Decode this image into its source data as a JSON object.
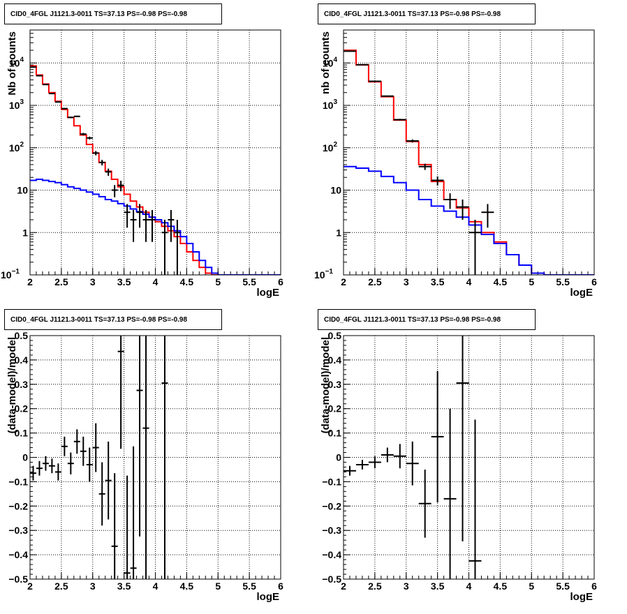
{
  "chart_data": [
    {
      "type": "line",
      "title": "CID0_4FGL J1121.3-0011 TS=37.13 PS=-0.98 PS=-0.98",
      "xlabel": "logE",
      "ylabel": "Nb of counts",
      "xlim": [
        2,
        6
      ],
      "ylim": [
        0.1,
        60000
      ],
      "yscale": "log",
      "grid": true,
      "xticks": [
        "2",
        "2.5",
        "3",
        "3.5",
        "4",
        "4.5",
        "5",
        "5.5",
        "6"
      ],
      "yticks": [
        {
          "v": 0.1,
          "label": "10",
          "sup": "−1"
        },
        {
          "v": 1,
          "label": "1",
          "sup": ""
        },
        {
          "v": 10,
          "label": "10",
          "sup": ""
        },
        {
          "v": 100,
          "label": "10",
          "sup": "2"
        },
        {
          "v": 1000,
          "label": "10",
          "sup": "3"
        },
        {
          "v": 10000,
          "label": "10",
          "sup": "4"
        }
      ],
      "bin_edges": [
        2.0,
        2.1,
        2.2,
        2.3,
        2.4,
        2.5,
        2.6,
        2.7,
        2.8,
        2.9,
        3.0,
        3.1,
        3.2,
        3.3,
        3.4,
        3.5,
        3.6,
        3.7,
        3.8,
        3.9,
        4.0,
        4.1,
        4.2,
        4.3,
        4.4,
        4.5,
        4.6,
        4.7,
        4.8,
        4.9,
        5.0,
        5.1,
        5.2,
        5.3,
        5.4,
        5.5,
        5.6,
        5.7,
        5.8,
        5.9,
        6.0
      ],
      "series": [
        {
          "kind": "step",
          "color": "#ff0000",
          "values": [
            8500,
            5200,
            3200,
            2000,
            1250,
            800,
            520,
            330,
            200,
            120,
            75,
            45,
            28,
            18,
            12,
            8,
            5.5,
            4,
            3,
            2.3,
            1.8,
            1.4,
            1.1,
            0.8,
            0.55,
            0.35,
            0.22,
            0.15,
            0.11,
            0.1,
            0.1,
            0.1,
            0.1,
            0.1,
            0.1,
            0.1,
            0.1,
            0.1,
            0.1,
            0.1
          ]
        },
        {
          "kind": "step",
          "color": "#0000ff",
          "values": [
            17,
            18,
            17,
            16,
            15,
            13.5,
            12,
            11,
            10,
            9,
            8,
            7,
            6,
            5.5,
            4.8,
            4.2,
            3.6,
            3.1,
            2.7,
            2.3,
            2,
            1.7,
            1.4,
            1.1,
            0.8,
            0.55,
            0.35,
            0.22,
            0.15,
            0.11,
            0.1,
            0.1,
            0.1,
            0.1,
            0.1,
            0.1,
            0.1,
            0.1,
            0.1,
            0.1
          ]
        },
        {
          "kind": "points",
          "color": "#000000",
          "x": [
            2.05,
            2.15,
            2.25,
            2.35,
            2.45,
            2.55,
            2.65,
            2.75,
            2.85,
            2.95,
            3.05,
            3.15,
            3.25,
            3.35,
            3.45,
            3.55,
            3.65,
            3.75,
            3.85,
            3.95,
            4.15,
            4.25,
            4.35
          ],
          "y": [
            8000,
            5000,
            3100,
            1900,
            1200,
            840,
            520,
            550,
            210,
            170,
            75,
            45,
            27,
            10,
            13,
            3,
            2,
            3,
            2,
            2,
            1,
            2,
            1
          ],
          "yerr_lo": [
            90,
            70,
            55,
            44,
            35,
            29,
            23,
            23,
            14,
            13,
            8.7,
            6.7,
            5.2,
            3.2,
            3.6,
            1.7,
            1.4,
            1.7,
            1.4,
            1.4,
            1,
            1.4,
            1
          ],
          "yerr_hi": [
            90,
            70,
            55,
            44,
            35,
            29,
            23,
            23,
            14,
            13,
            8.7,
            6.7,
            5.2,
            3.2,
            3.6,
            1.7,
            1.4,
            1.7,
            1.4,
            1.4,
            1,
            1.4,
            1
          ]
        }
      ]
    },
    {
      "type": "line",
      "title": "CID0_4FGL J1121.3-0011 TS=37.13 PS=-0.98 PS=-0.98",
      "xlabel": "logE",
      "ylabel": "nb of counts",
      "xlim": [
        2,
        6
      ],
      "ylim": [
        0.1,
        60000
      ],
      "yscale": "log",
      "grid": true,
      "xticks": [
        "2",
        "2.5",
        "3",
        "3.5",
        "4",
        "4.5",
        "5",
        "5.5",
        "6"
      ],
      "yticks": [
        {
          "v": 0.1,
          "label": "10",
          "sup": "−1"
        },
        {
          "v": 1,
          "label": "1",
          "sup": ""
        },
        {
          "v": 10,
          "label": "10",
          "sup": ""
        },
        {
          "v": 100,
          "label": "10",
          "sup": "2"
        },
        {
          "v": 1000,
          "label": "10",
          "sup": "3"
        },
        {
          "v": 10000,
          "label": "10",
          "sup": "4"
        }
      ],
      "bin_edges": [
        2.0,
        2.2,
        2.4,
        2.6,
        2.8,
        3.0,
        3.2,
        3.4,
        3.6,
        3.8,
        4.0,
        4.2,
        4.4,
        4.6,
        4.8,
        5.0,
        5.2,
        5.4,
        5.6,
        5.8,
        6.0
      ],
      "series": [
        {
          "kind": "step",
          "color": "#ff0000",
          "values": [
            20000,
            9000,
            3600,
            1600,
            450,
            140,
            40,
            16,
            6,
            3.8,
            1.8,
            1,
            0.6,
            0.3,
            0.17,
            0.11,
            0.1,
            0.1,
            0.1,
            0.1
          ]
        },
        {
          "kind": "step",
          "color": "#0000ff",
          "values": [
            36,
            33,
            28,
            21,
            15,
            10,
            6,
            4.2,
            3.2,
            2.3,
            1.5,
            0.9,
            0.55,
            0.3,
            0.17,
            0.11,
            0.1,
            0.1,
            0.1,
            0.1
          ]
        },
        {
          "kind": "points",
          "color": "#000000",
          "x": [
            2.1,
            2.3,
            2.5,
            2.7,
            2.9,
            3.1,
            3.3,
            3.5,
            3.7,
            3.9,
            4.1,
            4.3
          ],
          "y": [
            19000,
            9100,
            3700,
            1650,
            460,
            145,
            36,
            17,
            6,
            4,
            1,
            3
          ],
          "yerr_lo": [
            140,
            95,
            61,
            41,
            21,
            12,
            6,
            4.1,
            2.4,
            2,
            1,
            1.7
          ],
          "yerr_hi": [
            140,
            95,
            61,
            41,
            21,
            12,
            6,
            4.1,
            2.4,
            2,
            1,
            1.7
          ]
        }
      ]
    },
    {
      "type": "scatter",
      "title": "CID0_4FGL J1121.3-0011 TS=37.13 PS=-0.98 PS=-0.98",
      "xlabel": "logE",
      "ylabel": "(data-model)/model",
      "xlim": [
        2,
        6
      ],
      "ylim": [
        -0.5,
        0.5
      ],
      "grid": true,
      "xticks": [
        "2",
        "2.5",
        "3",
        "3.5",
        "4",
        "4.5",
        "5",
        "5.5",
        "6"
      ],
      "yticks": [
        {
          "v": -0.5,
          "label": "−0.5"
        },
        {
          "v": -0.4,
          "label": "−0.4"
        },
        {
          "v": -0.3,
          "label": "−0.3"
        },
        {
          "v": -0.2,
          "label": "−0.2"
        },
        {
          "v": -0.1,
          "label": "−0.1"
        },
        {
          "v": 0,
          "label": "0"
        },
        {
          "v": 0.1,
          "label": "0.1"
        },
        {
          "v": 0.2,
          "label": "0.2"
        },
        {
          "v": 0.3,
          "label": "0.3"
        },
        {
          "v": 0.4,
          "label": "0.4"
        },
        {
          "v": 0.5,
          "label": "0.5"
        }
      ],
      "xhalf": 0.05,
      "series": [
        {
          "kind": "points",
          "color": "#000000",
          "x": [
            2.05,
            2.15,
            2.25,
            2.35,
            2.45,
            2.55,
            2.65,
            2.75,
            2.85,
            2.95,
            3.05,
            3.15,
            3.25,
            3.35,
            3.45,
            3.55,
            3.65,
            3.75,
            3.85,
            4.15
          ],
          "y": [
            -0.065,
            -0.045,
            -0.025,
            -0.035,
            -0.06,
            0.045,
            -0.025,
            0.065,
            0.025,
            -0.03,
            0.04,
            -0.15,
            -0.095,
            -0.365,
            0.435,
            -0.475,
            -0.455,
            0.275,
            0.12,
            0.305
          ],
          "yerr_lo": [
            0.03,
            0.03,
            0.03,
            0.03,
            0.035,
            0.04,
            0.045,
            0.05,
            0.06,
            0.07,
            0.1,
            0.13,
            0.16,
            0.3,
            0.4,
            0.4,
            0.5,
            0.6,
            0.7,
            1.0
          ],
          "yerr_hi": [
            0.03,
            0.03,
            0.03,
            0.03,
            0.035,
            0.04,
            0.045,
            0.05,
            0.06,
            0.07,
            0.1,
            0.13,
            0.16,
            0.3,
            0.4,
            0.4,
            0.5,
            0.6,
            0.7,
            1.0
          ]
        }
      ]
    },
    {
      "type": "scatter",
      "title": "CID0_4FGL J1121.3-0011 TS=37.13 PS=-0.98 PS=-0.98",
      "xlabel": "logE",
      "ylabel": "(data-model)/model",
      "xlim": [
        2,
        6
      ],
      "ylim": [
        -0.5,
        0.5
      ],
      "grid": true,
      "xticks": [
        "2",
        "2.5",
        "3",
        "3.5",
        "4",
        "4.5",
        "5",
        "5.5",
        "6"
      ],
      "yticks": [
        {
          "v": -0.5,
          "label": "−0.5"
        },
        {
          "v": -0.4,
          "label": "−0.4"
        },
        {
          "v": -0.3,
          "label": "−0.3"
        },
        {
          "v": -0.2,
          "label": "−0.2"
        },
        {
          "v": -0.1,
          "label": "−0.1"
        },
        {
          "v": 0,
          "label": "0"
        },
        {
          "v": 0.1,
          "label": "0.1"
        },
        {
          "v": 0.2,
          "label": "0.2"
        },
        {
          "v": 0.3,
          "label": "0.3"
        },
        {
          "v": 0.4,
          "label": "0.4"
        },
        {
          "v": 0.5,
          "label": "0.5"
        }
      ],
      "xhalf": 0.1,
      "series": [
        {
          "kind": "points",
          "color": "#000000",
          "x": [
            2.1,
            2.3,
            2.5,
            2.7,
            2.9,
            3.1,
            3.3,
            3.5,
            3.7,
            3.9,
            4.1
          ],
          "y": [
            -0.055,
            -0.03,
            -0.02,
            0.01,
            0.005,
            -0.025,
            -0.19,
            0.085,
            -0.17,
            0.305,
            -0.425
          ],
          "yerr_lo": [
            0.02,
            0.02,
            0.025,
            0.03,
            0.05,
            0.09,
            0.14,
            0.27,
            0.37,
            0.65,
            0.58
          ],
          "yerr_hi": [
            0.02,
            0.02,
            0.025,
            0.03,
            0.05,
            0.09,
            0.14,
            0.27,
            0.37,
            0.65,
            0.58
          ]
        }
      ]
    }
  ]
}
